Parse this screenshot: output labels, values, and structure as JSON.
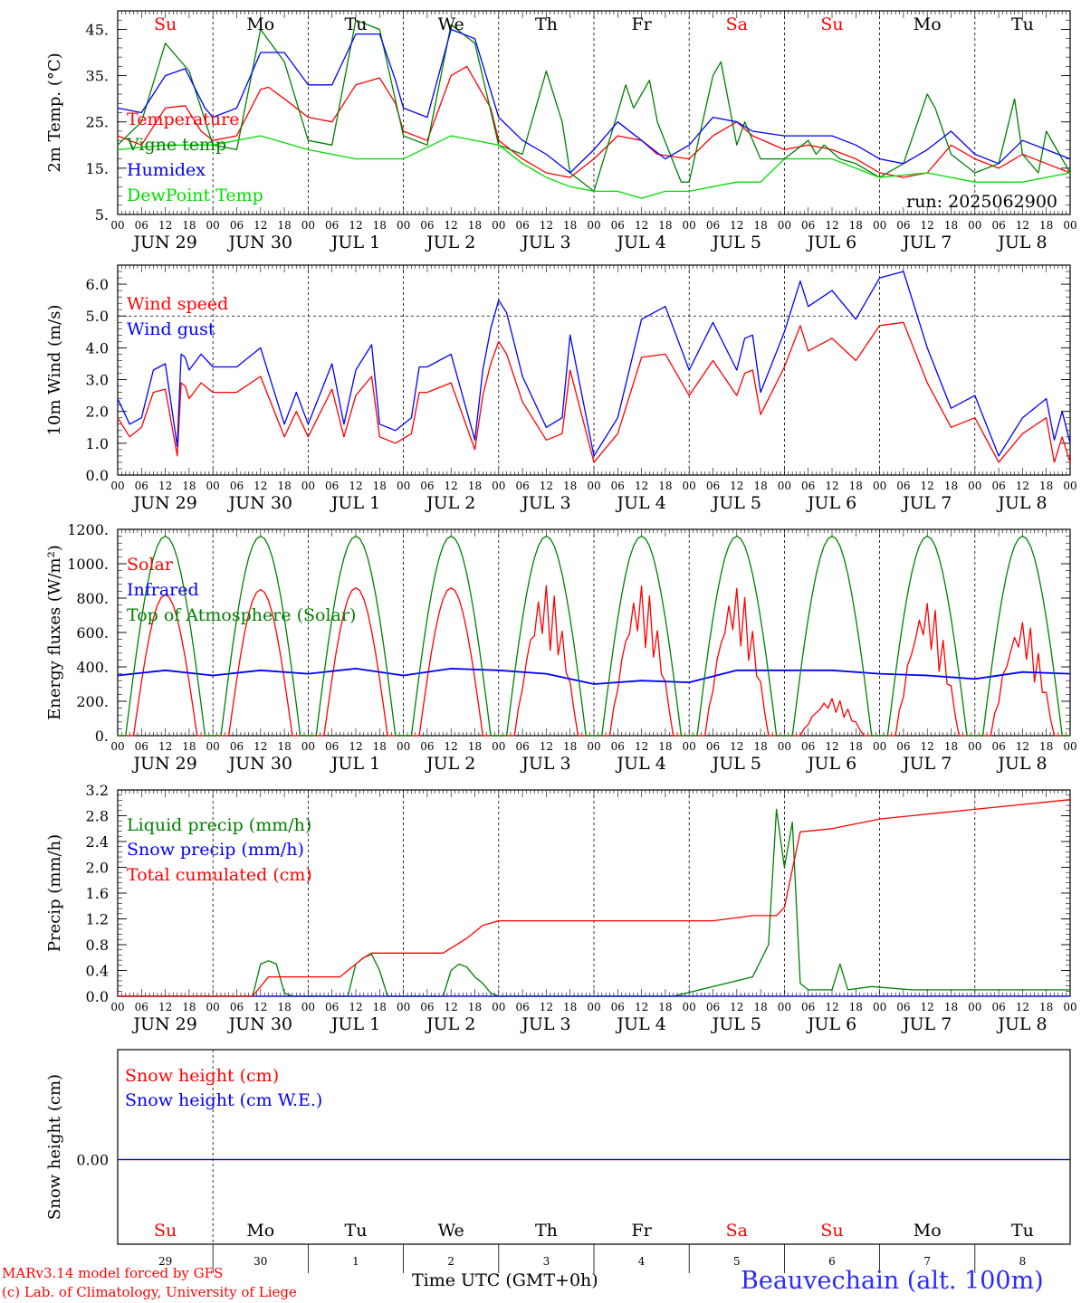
{
  "chart_data": {
    "type": "line",
    "run_label": "run: 2025062900",
    "x_unit": "hours UTC from 00 JUN 29",
    "x_range": [
      0,
      240
    ],
    "hour_tick_labels": [
      "00",
      "06",
      "12",
      "18"
    ],
    "hour_tick_final": "00",
    "date_labels": [
      "JUN 29",
      "JUN 30",
      "JUL  1",
      "JUL  2",
      "JUL  3",
      "JUL  4",
      "JUL  5",
      "JUL  6",
      "JUL  7",
      "JUL  8"
    ],
    "day_labels": [
      "Su",
      "Mo",
      "Tu",
      "We",
      "Th",
      "Fr",
      "Sa",
      "Su",
      "Mo",
      "Tu"
    ],
    "weekend_flags": [
      true,
      false,
      false,
      false,
      false,
      false,
      true,
      true,
      false,
      false
    ],
    "weekend_color": "#ff0000",
    "day_numbers": [
      "29",
      "30",
      "1",
      "2",
      "3",
      "4",
      "5",
      "6",
      "7",
      "8"
    ],
    "footer": {
      "credit1": "MARv3.14 model forced by GFS",
      "credit2": "(c) Lab. of Climatology, University of Liege",
      "xaxis_title": "Time UTC (GMT+0h)",
      "station": "Beauvechain (alt. 100m)"
    },
    "panels": [
      {
        "id": "temperature",
        "ylabel": "2m Temp. (°C)",
        "ylim": [
          5,
          49
        ],
        "yticks": [
          5,
          15,
          25,
          35,
          45
        ],
        "ytick_labels": [
          "5.",
          "15.",
          "25.",
          "35.",
          "45."
        ],
        "series": [
          {
            "name": "Temperature",
            "color": "#ff0000",
            "x": [
              0,
              6,
              12,
              17,
              21,
              24,
              30,
              36,
              38,
              42,
              48,
              54,
              60,
              66,
              70,
              72,
              78,
              84,
              88,
              94,
              96,
              102,
              108,
              114,
              120,
              126,
              132,
              136,
              144,
              150,
              156,
              160,
              168,
              174,
              180,
              186,
              192,
              198,
              204,
              210,
              216,
              222,
              228,
              234,
              240
            ],
            "y": [
              22,
              20,
              28,
              28.5,
              23,
              21,
              22,
              32,
              32.5,
              30,
              26,
              25,
              33,
              34.5,
              29,
              23,
              21,
              35,
              37,
              28,
              21,
              17,
              14,
              13,
              17,
              22,
              21,
              18,
              17,
              22,
              25,
              22,
              19,
              20,
              19,
              17,
              14,
              13,
              14,
              20,
              17,
              15,
              18,
              16,
              14
            ]
          },
          {
            "name": "Vigne temp",
            "color": "#008000",
            "x": [
              0,
              6,
              12,
              18,
              24,
              30,
              36,
              42,
              48,
              54,
              60,
              66,
              72,
              78,
              84,
              90,
              96,
              102,
              106,
              108,
              112,
              114,
              120,
              126,
              128,
              130,
              134,
              136,
              142,
              144,
              150,
              152,
              156,
              158,
              162,
              168,
              174,
              176,
              178,
              182,
              186,
              192,
              198,
              204,
              206,
              210,
              216,
              222,
              226,
              228,
              232,
              234,
              240
            ],
            "y": [
              20,
              25,
              42,
              36,
              20,
              19,
              45,
              38,
              21,
              20,
              47,
              45,
              22,
              20,
              46,
              42,
              20,
              18,
              30,
              36,
              25,
              14,
              10,
              27,
              33,
              28,
              34,
              25,
              12,
              12,
              35,
              38,
              20,
              25,
              17,
              17,
              21,
              18,
              20,
              17,
              16,
              13,
              16,
              31,
              28,
              18,
              14,
              16,
              30,
              18,
              14,
              23,
              14
            ]
          },
          {
            "name": "Humidex",
            "color": "#0000ff",
            "x": [
              0,
              6,
              12,
              17,
              22,
              24,
              30,
              36,
              42,
              48,
              54,
              60,
              66,
              70,
              72,
              78,
              84,
              90,
              96,
              102,
              108,
              114,
              120,
              126,
              132,
              138,
              144,
              150,
              156,
              160,
              168,
              174,
              180,
              186,
              192,
              198,
              204,
              210,
              216,
              222,
              228,
              234,
              240
            ],
            "y": [
              28,
              27,
              35,
              36.5,
              28,
              26,
              28,
              40,
              40,
              33,
              33,
              44,
              44,
              34,
              28,
              26,
              45,
              43,
              26,
              21,
              18,
              14,
              19,
              25,
              21,
              17,
              20,
              26,
              25,
              23,
              22,
              22,
              22,
              20,
              17,
              16,
              19,
              23,
              18,
              16,
              21,
              19,
              17
            ]
          },
          {
            "name": "DewPoint Temp",
            "color": "#00dd00",
            "x": [
              0,
              12,
              24,
              36,
              48,
              60,
              72,
              84,
              96,
              102,
              108,
              114,
              120,
              126,
              132,
              138,
              144,
              150,
              156,
              162,
              168,
              180,
              192,
              204,
              216,
              228,
              240
            ],
            "y": [
              19,
              20,
              20,
              22,
              19,
              17,
              17,
              22,
              20,
              16,
              13,
              11,
              10,
              10,
              8.5,
              10,
              10,
              11,
              12,
              12,
              17,
              17,
              13,
              14,
              12,
              12,
              14
            ]
          }
        ]
      },
      {
        "id": "wind",
        "ylabel": "10m Wind (m/s)",
        "ylim": [
          0,
          6.6
        ],
        "yticks": [
          0,
          1,
          2,
          3,
          4,
          5,
          6
        ],
        "ytick_labels": [
          "0.0",
          "1.0",
          "2.0",
          "3.0",
          "4.0",
          "5.0",
          "6.0"
        ],
        "reference_line": 5.0,
        "series": [
          {
            "name": "Wind speed",
            "color": "#ff0000",
            "x": [
              0,
              3,
              6,
              9,
              12,
              15,
              16,
              17,
              18,
              21,
              24,
              30,
              36,
              42,
              45,
              48,
              54,
              57,
              60,
              64,
              66,
              70,
              74,
              76,
              78,
              84,
              90,
              92,
              94,
              96,
              98,
              102,
              108,
              112,
              114,
              120,
              126,
              132,
              138,
              144,
              150,
              156,
              158,
              160,
              162,
              168,
              172,
              174,
              180,
              186,
              192,
              198,
              204,
              210,
              216,
              222,
              228,
              234,
              236,
              238,
              240
            ],
            "y": [
              1.8,
              1.2,
              1.5,
              2.6,
              2.7,
              0.6,
              2.9,
              2.8,
              2.4,
              2.9,
              2.6,
              2.6,
              3.1,
              1.2,
              2.0,
              1.2,
              2.7,
              1.2,
              2.5,
              3.1,
              1.2,
              1.0,
              1.3,
              2.6,
              2.6,
              2.9,
              0.8,
              2.5,
              3.5,
              4.2,
              3.8,
              2.3,
              1.1,
              1.3,
              3.3,
              0.4,
              1.3,
              3.7,
              3.8,
              2.5,
              3.6,
              2.5,
              3.2,
              3.3,
              1.9,
              3.4,
              4.7,
              3.9,
              4.3,
              3.6,
              4.7,
              4.8,
              2.9,
              1.5,
              1.8,
              0.4,
              1.3,
              1.8,
              0.4,
              1.2,
              0.4
            ]
          },
          {
            "name": "Wind gust",
            "color": "#0000ff",
            "x": [
              0,
              3,
              6,
              9,
              12,
              15,
              16,
              17,
              18,
              21,
              24,
              30,
              36,
              42,
              45,
              48,
              54,
              57,
              60,
              64,
              66,
              70,
              74,
              76,
              78,
              84,
              90,
              92,
              94,
              96,
              98,
              102,
              108,
              112,
              114,
              120,
              126,
              132,
              138,
              144,
              150,
              156,
              158,
              160,
              162,
              168,
              172,
              174,
              180,
              186,
              192,
              198,
              204,
              210,
              216,
              222,
              228,
              234,
              236,
              238,
              240
            ],
            "y": [
              2.4,
              1.6,
              1.8,
              3.3,
              3.5,
              0.9,
              3.8,
              3.7,
              3.3,
              3.8,
              3.4,
              3.4,
              4.0,
              1.6,
              2.6,
              1.6,
              3.5,
              1.6,
              3.3,
              4.1,
              1.6,
              1.4,
              1.8,
              3.4,
              3.4,
              3.8,
              1.1,
              3.3,
              4.6,
              5.5,
              5.1,
              3.1,
              1.5,
              1.8,
              4.4,
              0.6,
              1.8,
              4.9,
              5.3,
              3.3,
              4.8,
              3.3,
              4.3,
              4.4,
              2.6,
              4.5,
              6.1,
              5.3,
              5.8,
              4.9,
              6.2,
              6.4,
              4.0,
              2.1,
              2.5,
              0.6,
              1.8,
              2.4,
              1.1,
              2.0,
              1.0
            ]
          }
        ]
      },
      {
        "id": "energy",
        "ylabel": "Energy fluxes (W/m²)",
        "ylim": [
          0,
          1200
        ],
        "yticks": [
          0,
          200,
          400,
          600,
          800,
          1000,
          1200
        ],
        "ytick_labels": [
          "0.",
          "200.",
          "400.",
          "600.",
          "800.",
          "1000.",
          "1200."
        ],
        "series": [
          {
            "name": "Solar",
            "color": "#ff0000",
            "daily_peak": [
              820,
              850,
              860,
              860,
              880,
              880,
              870,
              220,
              790,
              680
            ],
            "sunrise_h": 4,
            "sunset_h": 20
          },
          {
            "name": "Infrared",
            "color": "#0000ff",
            "x": [
              0,
              12,
              24,
              36,
              48,
              60,
              72,
              84,
              96,
              108,
              120,
              132,
              144,
              156,
              168,
              180,
              192,
              204,
              216,
              228,
              240
            ],
            "y": [
              350,
              380,
              350,
              380,
              360,
              390,
              350,
              390,
              380,
              360,
              300,
              320,
              310,
              380,
              380,
              380,
              360,
              350,
              330,
              370,
              360
            ]
          },
          {
            "name": "Top of Atmosphere (Solar)",
            "color": "#008000",
            "daily_peak": [
              1160,
              1160,
              1160,
              1160,
              1160,
              1160,
              1160,
              1160,
              1160,
              1160
            ],
            "sunrise_h": 2,
            "sunset_h": 22
          }
        ]
      },
      {
        "id": "precip",
        "ylabel": "Precip (mm/h)",
        "ylim": [
          0,
          3.2
        ],
        "yticks": [
          0,
          0.4,
          0.8,
          1.2,
          1.6,
          2.0,
          2.4,
          2.8,
          3.2
        ],
        "ytick_labels": [
          "0.0",
          "0.4",
          "0.8",
          "1.2",
          "1.6",
          "2.0",
          "2.4",
          "2.8",
          "3.2"
        ],
        "series": [
          {
            "name": "Liquid precip (mm/h)",
            "color": "#008000",
            "x": [
              0,
              34,
              36,
              38,
              40,
              42,
              44,
              46,
              58,
              60,
              62,
              64,
              66,
              68,
              82,
              84,
              86,
              88,
              90,
              92,
              94,
              96,
              98,
              140,
              160,
              164,
              166,
              168,
              170,
              172,
              174,
              180,
              182,
              184,
              190,
              200,
              220,
              230,
              240
            ],
            "y": [
              0,
              0,
              0.5,
              0.55,
              0.5,
              0.05,
              0,
              0,
              0,
              0.5,
              0.6,
              0.65,
              0.4,
              0,
              0,
              0.4,
              0.5,
              0.45,
              0.3,
              0.2,
              0.05,
              0,
              0,
              0,
              0.3,
              0.8,
              2.9,
              2.0,
              2.7,
              0.2,
              0.1,
              0.1,
              0.5,
              0.1,
              0.15,
              0.1,
              0.1,
              0.1,
              0.1
            ]
          },
          {
            "name": "Snow precip (mm/h)",
            "color": "#0000ff",
            "x": [
              0,
              240
            ],
            "y": [
              0,
              0
            ]
          },
          {
            "name": "Total cumulated (cm)",
            "color": "#ff0000",
            "x": [
              0,
              34,
              38,
              42,
              56,
              62,
              64,
              82,
              88,
              92,
              96,
              150,
              160,
              166,
              168,
              172,
              180,
              192,
              200,
              216,
              240
            ],
            "y": [
              0,
              0,
              0.3,
              0.3,
              0.3,
              0.6,
              0.67,
              0.67,
              0.9,
              1.1,
              1.17,
              1.17,
              1.25,
              1.25,
              1.38,
              2.55,
              2.6,
              2.75,
              2.8,
              2.9,
              3.05
            ]
          }
        ]
      },
      {
        "id": "snow",
        "ylabel": "Snow height (cm)",
        "ytick_labels": [
          "0.00"
        ],
        "series": [
          {
            "name": "Snow height (cm)",
            "color": "#ff0000",
            "x": [
              0,
              240
            ],
            "y": [
              0,
              0
            ]
          },
          {
            "name": "Snow height (cm W.E.)",
            "color": "#0000ff",
            "x": [
              0,
              240
            ],
            "y": [
              0,
              0
            ]
          }
        ]
      }
    ]
  }
}
